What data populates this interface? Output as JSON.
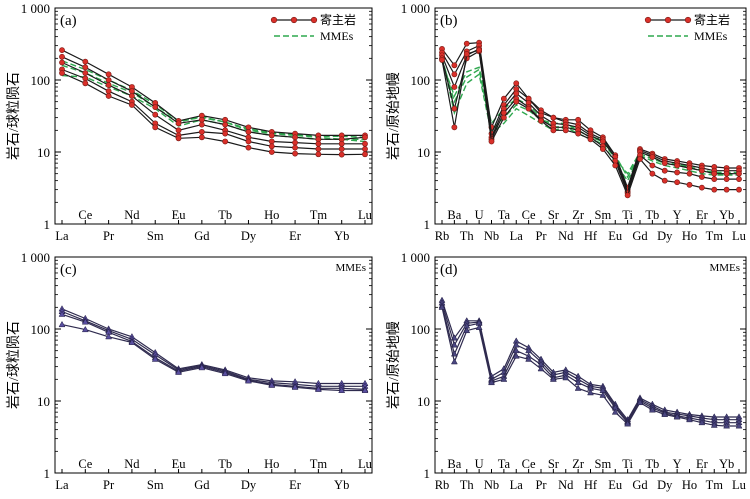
{
  "chart_data": [
    {
      "type": "line",
      "panel_label": "(a)",
      "ylabel": "岩石/球粒陨石",
      "yscale": "log",
      "ylim": [
        1,
        1000
      ],
      "y_tick_labels": [
        "1",
        "10",
        "100",
        "1 000"
      ],
      "x": [
        "La",
        "Ce",
        "Pr",
        "Nd",
        "Sm",
        "Eu",
        "Gd",
        "Tb",
        "Dy",
        "Ho",
        "Er",
        "Tm",
        "Yb",
        "Lu"
      ],
      "x_label_rows": [
        "low",
        "high",
        "low",
        "high",
        "low",
        "high",
        "low",
        "high",
        "low",
        "high",
        "low",
        "high",
        "low",
        "high"
      ],
      "legend": [
        {
          "label": "寄主岩",
          "style": "host"
        },
        {
          "label": "MMEs",
          "style": "mmes"
        }
      ],
      "legend_position": "top-right",
      "series": [
        {
          "style": "host",
          "values": [
            260,
            180,
            120,
            80,
            48,
            27,
            32,
            28,
            22,
            19,
            18,
            17,
            17,
            17
          ]
        },
        {
          "style": "host",
          "values": [
            210,
            150,
            100,
            70,
            42,
            25,
            28,
            24,
            19,
            17,
            16,
            15,
            15,
            16
          ]
        },
        {
          "style": "host",
          "values": [
            175,
            125,
            85,
            60,
            33,
            20,
            24,
            20,
            16,
            14,
            13.5,
            13,
            13,
            13
          ]
        },
        {
          "style": "host",
          "values": [
            140,
            105,
            70,
            50,
            25,
            17,
            19,
            18,
            14,
            12,
            11.5,
            11,
            11,
            11
          ]
        },
        {
          "style": "host",
          "values": [
            125,
            90,
            60,
            45,
            22,
            15.5,
            16,
            14,
            11.5,
            10,
            9.5,
            9.3,
            9.2,
            9.3
          ]
        },
        {
          "style": "mmes",
          "values": [
            115,
            110,
            80,
            60,
            40,
            23,
            28,
            24,
            19,
            17,
            16,
            15,
            15,
            15
          ]
        },
        {
          "style": "mmes",
          "values": [
            160,
            125,
            90,
            67,
            42,
            26,
            31,
            26,
            20,
            18,
            17,
            16,
            15,
            14
          ]
        },
        {
          "style": "mmes",
          "values": [
            185,
            140,
            100,
            72,
            46,
            27,
            30,
            26,
            21,
            18.5,
            17.5,
            16.5,
            16.5,
            16
          ]
        }
      ]
    },
    {
      "type": "line",
      "panel_label": "(b)",
      "ylabel": "岩石/原始地幔",
      "yscale": "log",
      "ylim": [
        1,
        1000
      ],
      "y_tick_labels": [
        "1",
        "10",
        "100",
        "1 000"
      ],
      "x": [
        "Rb",
        "Ba",
        "Th",
        "U",
        "Nb",
        "Ta",
        "La",
        "Ce",
        "Pr",
        "Sr",
        "Nd",
        "Zr",
        "Hf",
        "Sm",
        "Eu",
        "Ti",
        "Gd",
        "Tb",
        "Dy",
        "Y",
        "Ho",
        "Er",
        "Tm",
        "Yb",
        "Lu"
      ],
      "x_label_rows": [
        "low",
        "high",
        "low",
        "high",
        "low",
        "high",
        "low",
        "high",
        "low",
        "high",
        "low",
        "high",
        "low",
        "high",
        "low",
        "high",
        "low",
        "high",
        "low",
        "high",
        "low",
        "high",
        "low",
        "high",
        "low"
      ],
      "legend": [
        {
          "label": "寄主岩",
          "style": "host"
        },
        {
          "label": "MMEs",
          "style": "mmes"
        }
      ],
      "legend_position": "top-right",
      "series": [
        {
          "style": "host",
          "values": [
            270,
            160,
            320,
            330,
            22,
            55,
            90,
            55,
            38,
            30,
            28,
            28,
            20,
            16,
            9,
            3.2,
            11,
            9.5,
            8,
            7.5,
            7,
            6.5,
            6.2,
            6,
            6
          ]
        },
        {
          "style": "host",
          "values": [
            240,
            120,
            250,
            300,
            18,
            45,
            75,
            55,
            35,
            30,
            26,
            24,
            18,
            15,
            9,
            3,
            10.5,
            9,
            7.5,
            7,
            6.5,
            6,
            5.5,
            5.5,
            5.5
          ]
        },
        {
          "style": "host",
          "values": [
            220,
            80,
            220,
            270,
            16,
            40,
            65,
            48,
            32,
            25,
            24,
            22,
            17,
            14,
            8.5,
            2.8,
            10,
            8.5,
            7,
            6.5,
            6,
            5.5,
            5,
            5,
            5
          ]
        },
        {
          "style": "host",
          "values": [
            200,
            40,
            200,
            250,
            15,
            35,
            55,
            42,
            28,
            22,
            22,
            20,
            16,
            12,
            7.5,
            2.7,
            9,
            6.5,
            5.5,
            5.2,
            5,
            4.5,
            4.2,
            4.2,
            4.2
          ]
        },
        {
          "style": "host",
          "values": [
            190,
            22,
            230,
            260,
            14,
            30,
            50,
            40,
            27,
            20,
            20,
            18,
            15,
            11,
            6.5,
            2.5,
            8,
            5,
            4,
            3.8,
            3.5,
            3.2,
            3,
            3,
            3
          ]
        },
        {
          "style": "mmes",
          "values": [
            200,
            50,
            110,
            140,
            20,
            30,
            45,
            38,
            28,
            25,
            25,
            20,
            16,
            15,
            9,
            4.5,
            9.5,
            8,
            7,
            6.5,
            6,
            5.5,
            5,
            5,
            5
          ]
        },
        {
          "style": "mmes",
          "values": [
            180,
            60,
            130,
            150,
            25,
            40,
            55,
            45,
            30,
            22,
            23,
            20,
            16,
            14,
            8,
            5,
            10,
            8.5,
            7,
            6.8,
            6.2,
            5.6,
            5.2,
            5.2,
            5.2
          ]
        },
        {
          "style": "mmes",
          "values": [
            210,
            35,
            90,
            120,
            18,
            25,
            40,
            32,
            25,
            20,
            22,
            18,
            15,
            13,
            7,
            4,
            9,
            7.5,
            6.5,
            6,
            5.5,
            5,
            4.8,
            4.8,
            4.8
          ]
        }
      ]
    },
    {
      "type": "line",
      "panel_label": "(c)",
      "panel_note": "MMEs",
      "ylabel": "岩石/球粒陨石",
      "yscale": "log",
      "ylim": [
        1,
        1000
      ],
      "y_tick_labels": [
        "1",
        "10",
        "100",
        "1 000"
      ],
      "x": [
        "La",
        "Ce",
        "Pr",
        "Nd",
        "Sm",
        "Eu",
        "Gd",
        "Tb",
        "Dy",
        "Ho",
        "Er",
        "Tm",
        "Yb",
        "Lu"
      ],
      "x_label_rows": [
        "low",
        "high",
        "low",
        "high",
        "low",
        "high",
        "low",
        "high",
        "low",
        "high",
        "low",
        "high",
        "low",
        "high"
      ],
      "series": [
        {
          "style": "mmes_c",
          "values": [
            190,
            140,
            100,
            78,
            47,
            28,
            32,
            27,
            21,
            19,
            18.5,
            17.5,
            17.5,
            17.5
          ]
        },
        {
          "style": "mmes_c",
          "values": [
            175,
            130,
            95,
            72,
            44,
            27,
            31,
            26,
            20,
            18,
            17,
            16,
            16,
            16
          ]
        },
        {
          "style": "mmes_c",
          "values": [
            160,
            125,
            90,
            67,
            40,
            26,
            30,
            25,
            19.5,
            17,
            16,
            15,
            15,
            14.5
          ]
        },
        {
          "style": "mmes_c",
          "values": [
            115,
            98,
            78,
            65,
            38,
            25,
            29,
            24,
            19,
            16.5,
            15.5,
            14.5,
            14,
            14
          ]
        }
      ]
    },
    {
      "type": "line",
      "panel_label": "(d)",
      "panel_note": "MMEs",
      "ylabel": "岩石/原始地幔",
      "yscale": "log",
      "ylim": [
        1,
        1000
      ],
      "y_tick_labels": [
        "1",
        "10",
        "100",
        "1 000"
      ],
      "x": [
        "Rb",
        "Ba",
        "Th",
        "U",
        "Nb",
        "Ta",
        "La",
        "Ce",
        "Pr",
        "Sr",
        "Nd",
        "Zr",
        "Hf",
        "Sm",
        "Eu",
        "Ti",
        "Gd",
        "Tb",
        "Dy",
        "Y",
        "Ho",
        "Er",
        "Tm",
        "Yb",
        "Lu"
      ],
      "x_label_rows": [
        "low",
        "high",
        "low",
        "high",
        "low",
        "high",
        "low",
        "high",
        "low",
        "high",
        "low",
        "high",
        "low",
        "high",
        "low",
        "high",
        "low",
        "high",
        "low",
        "high",
        "low",
        "high",
        "low",
        "high",
        "low"
      ],
      "series": [
        {
          "style": "mmes_d",
          "values": [
            250,
            75,
            130,
            130,
            22,
            28,
            68,
            55,
            38,
            25,
            27,
            22,
            17,
            16,
            9,
            5.5,
            11,
            9,
            7.5,
            7,
            6.5,
            6.2,
            6,
            6,
            6
          ]
        },
        {
          "style": "mmes_d",
          "values": [
            230,
            60,
            120,
            125,
            20,
            25,
            60,
            50,
            35,
            23,
            25,
            20,
            16,
            15,
            8.5,
            5.2,
            10.5,
            8.5,
            7,
            6.6,
            6.2,
            5.8,
            5.5,
            5.5,
            5.5
          ]
        },
        {
          "style": "mmes_d",
          "values": [
            210,
            45,
            110,
            120,
            19,
            22,
            50,
            42,
            32,
            21,
            23,
            18,
            15,
            14,
            8,
            5,
            10,
            8,
            6.8,
            6.2,
            5.8,
            5.4,
            5,
            5,
            5
          ]
        },
        {
          "style": "mmes_d",
          "values": [
            200,
            35,
            95,
            105,
            18,
            20,
            42,
            38,
            28,
            20,
            21,
            15,
            13,
            12,
            7,
            4.8,
            9.5,
            7.5,
            6.5,
            6,
            5.5,
            5,
            4.6,
            4.5,
            4.5
          ]
        }
      ]
    }
  ],
  "colors": {
    "axis": "#000000",
    "host_line": "#1a1a1a",
    "host_marker": "#d9302a",
    "mmes_line": "#2fa84f",
    "mmes_c_line": "#2f2b4f",
    "mmes_c_marker": "#5a4fa0",
    "mmes_d_line": "#2f2b4f",
    "mmes_d_marker": "#4a4680"
  }
}
